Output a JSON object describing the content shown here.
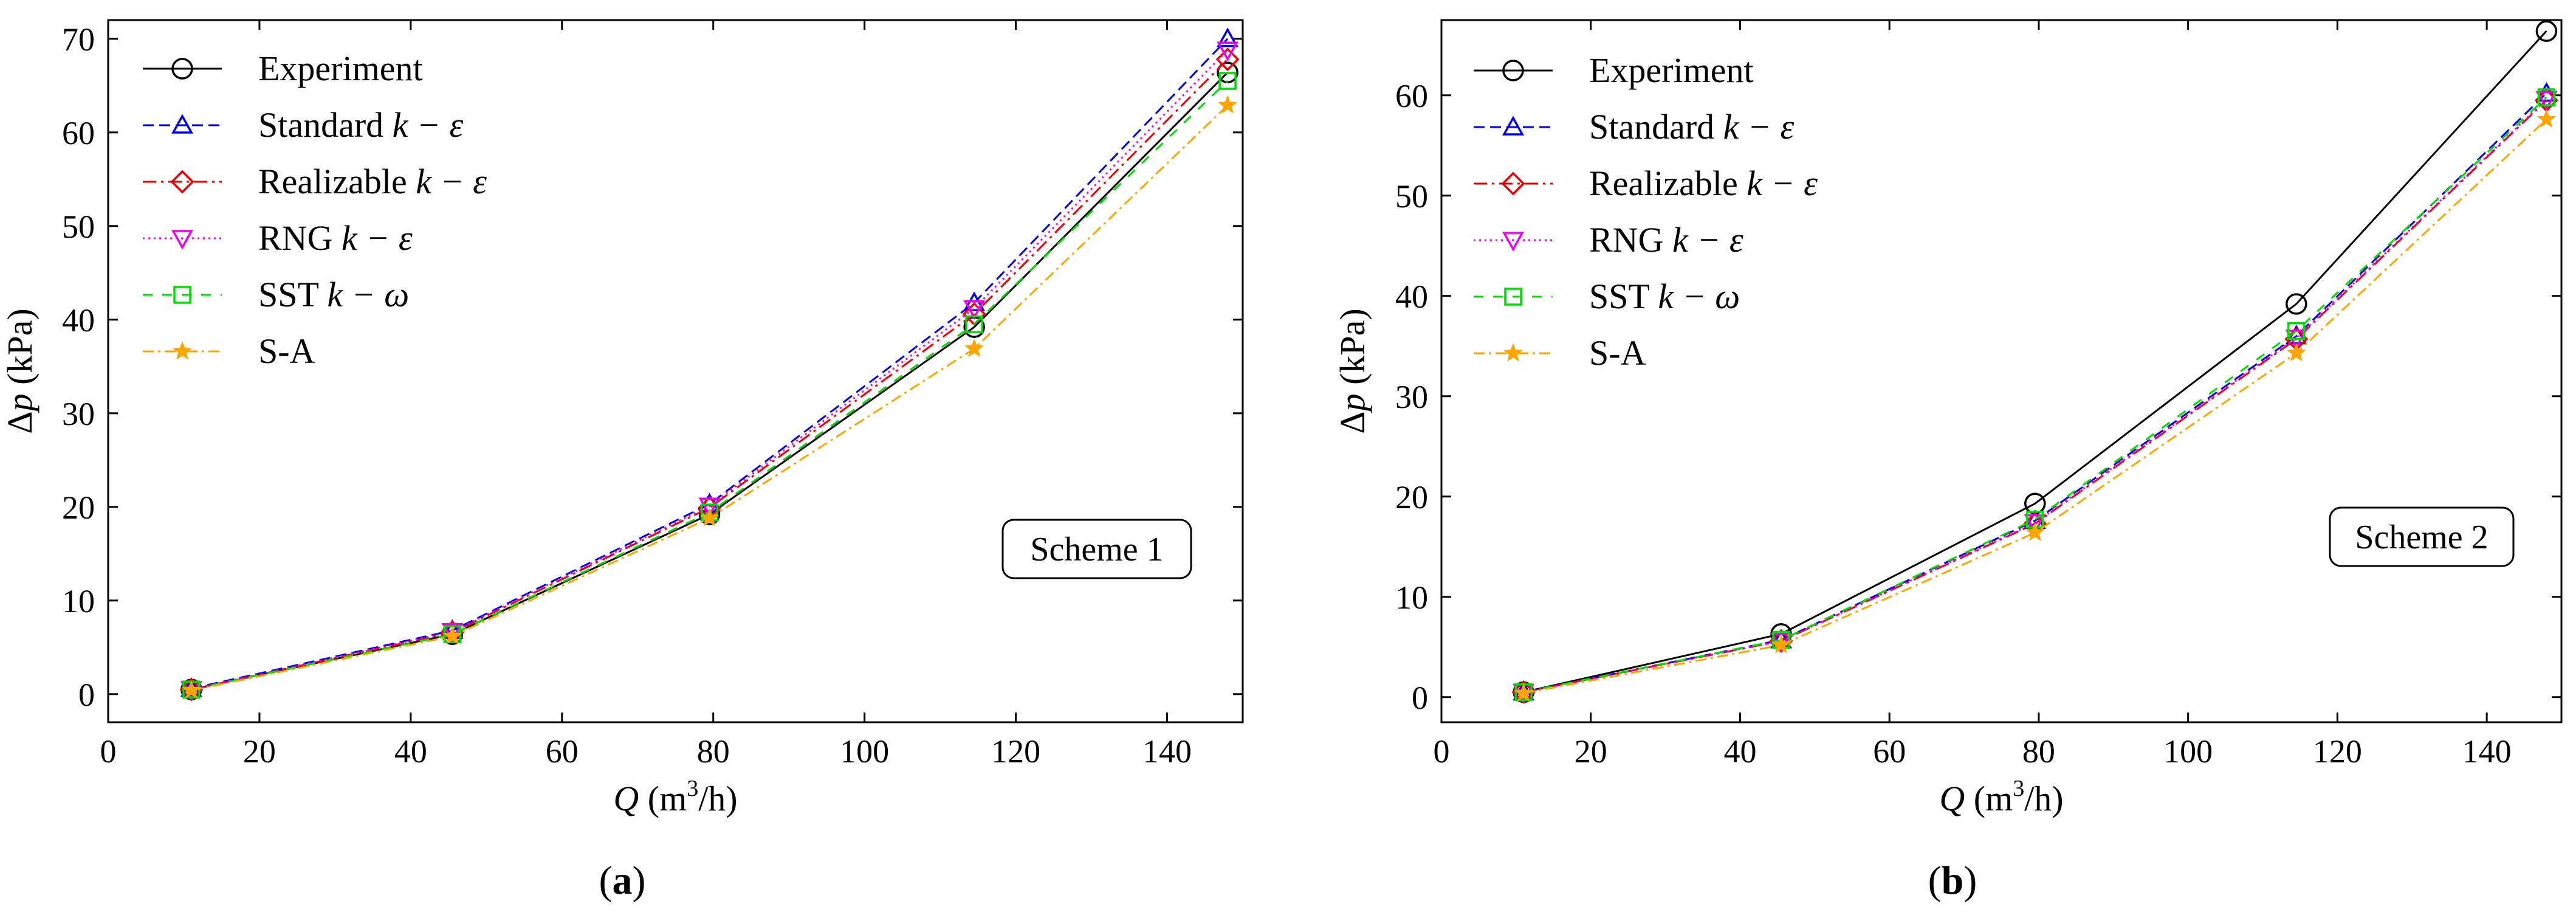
{
  "chart_data": [
    {
      "type": "line",
      "panel": "a",
      "panel_label": "a",
      "annotation": "Scheme 1",
      "xlabel_italic": "Q",
      "xlabel_rest": " (m",
      "xlabel_sup": "3",
      "xlabel_end": "/h)",
      "ylabel_prefix": "Δ",
      "ylabel_italic": "p",
      "ylabel_rest": " (kPa)",
      "xlim": [
        0,
        150
      ],
      "ylim": [
        -3,
        72
      ],
      "xticks": [
        0,
        20,
        40,
        60,
        80,
        100,
        120,
        140
      ],
      "yticks": [
        0,
        10,
        20,
        30,
        40,
        50,
        60,
        70
      ],
      "x": [
        11,
        45.5,
        79.5,
        114.5,
        148
      ],
      "series": [
        {
          "name": "Experiment",
          "name_math": "",
          "color": "#000000",
          "dash": "",
          "marker": "circle",
          "values": [
            0.5,
            6.4,
            19.2,
            39.2,
            66.4
          ]
        },
        {
          "name": "Standard ",
          "name_math": "k − ε",
          "color": "#0000ee",
          "dash": "18,9",
          "marker": "triangle-up",
          "values": [
            0.6,
            6.8,
            20.3,
            41.8,
            70.0
          ]
        },
        {
          "name": "Realizable ",
          "name_math": "k − ε",
          "color": "#ee0000",
          "dash": "22,8,4,8",
          "marker": "diamond",
          "values": [
            0.5,
            6.6,
            19.9,
            40.6,
            67.8
          ]
        },
        {
          "name": "RNG ",
          "name_math": "k − ε",
          "color": "#ee00ee",
          "dash": "3,6",
          "marker": "triangle-down",
          "values": [
            0.5,
            6.7,
            20.1,
            41.2,
            68.8
          ]
        },
        {
          "name": "SST ",
          "name_math": "k − ω",
          "color": "#00dd00",
          "dash": "16,16",
          "marker": "square",
          "values": [
            0.5,
            6.4,
            19.4,
            39.5,
            65.5
          ]
        },
        {
          "name": "S-A",
          "name_math": "",
          "color": "#ffa500",
          "dash": "18,7,4,7",
          "marker": "star",
          "values": [
            0.4,
            6.2,
            18.8,
            36.9,
            62.9
          ]
        }
      ]
    },
    {
      "type": "line",
      "panel": "b",
      "panel_label": "b",
      "annotation": "Scheme 2",
      "xlabel_italic": "Q",
      "xlabel_rest": " (m",
      "xlabel_sup": "3",
      "xlabel_end": "/h)",
      "ylabel_prefix": "Δ",
      "ylabel_italic": "p",
      "ylabel_rest": " (kPa)",
      "xlim": [
        0,
        150
      ],
      "ylim": [
        -2.5,
        67.5
      ],
      "xticks": [
        0,
        20,
        40,
        60,
        80,
        100,
        120,
        140
      ],
      "yticks": [
        0,
        10,
        20,
        30,
        40,
        50,
        60
      ],
      "x": [
        11,
        45.5,
        79.5,
        114.5,
        148
      ],
      "series": [
        {
          "name": "Experiment",
          "name_math": "",
          "color": "#000000",
          "dash": "",
          "marker": "circle",
          "values": [
            0.5,
            6.3,
            19.3,
            39.2,
            66.4
          ]
        },
        {
          "name": "Standard ",
          "name_math": "k − ε",
          "color": "#0000ee",
          "dash": "18,9",
          "marker": "triangle-up",
          "values": [
            0.5,
            5.7,
            17.6,
            36.0,
            60.2
          ]
        },
        {
          "name": "Realizable ",
          "name_math": "k − ε",
          "color": "#ee0000",
          "dash": "22,8,4,8",
          "marker": "diamond",
          "values": [
            0.5,
            5.6,
            17.3,
            35.7,
            59.5
          ]
        },
        {
          "name": "RNG ",
          "name_math": "k − ε",
          "color": "#ee00ee",
          "dash": "3,6",
          "marker": "triangle-down",
          "values": [
            0.5,
            5.6,
            17.4,
            35.8,
            59.6
          ]
        },
        {
          "name": "SST ",
          "name_math": "k − ω",
          "color": "#00dd00",
          "dash": "16,16",
          "marker": "square",
          "values": [
            0.5,
            5.7,
            17.7,
            36.5,
            59.8
          ]
        },
        {
          "name": "S-A",
          "name_math": "",
          "color": "#ffa500",
          "dash": "18,7,4,7",
          "marker": "star",
          "values": [
            0.4,
            5.2,
            16.4,
            34.3,
            57.6
          ]
        }
      ]
    }
  ]
}
